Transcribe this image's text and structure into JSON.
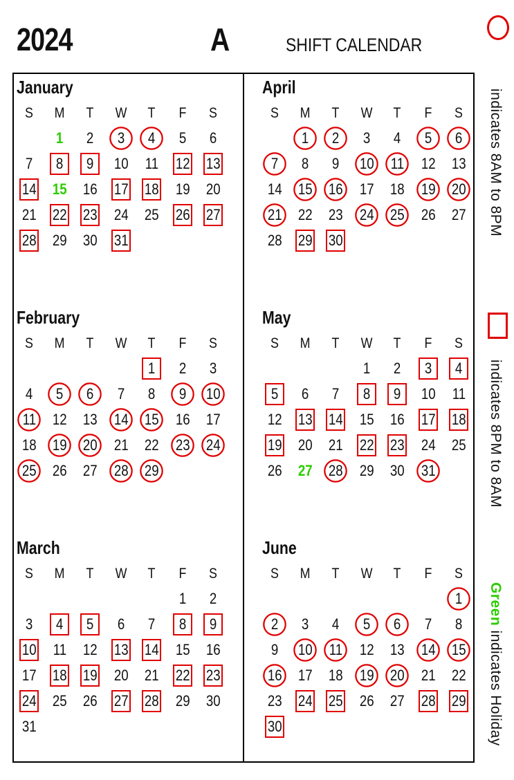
{
  "header": {
    "year": "2024",
    "team": "A",
    "title": "SHIFT CALENDAR"
  },
  "colors": {
    "shift_mark": "#e00000",
    "holiday": "#2ecc00"
  },
  "dow": [
    "S",
    "M",
    "T",
    "W",
    "T",
    "F",
    "S"
  ],
  "legend": {
    "circle_text": "indicates 8AM to 8PM",
    "square_text": "indicates 8PM to 8AM",
    "green_word": "Green",
    "green_text": " indicates Holiday"
  },
  "months": [
    {
      "name": "January",
      "start": 1,
      "days": 31,
      "circle": [
        3,
        4
      ],
      "square": [
        8,
        9,
        12,
        13,
        14,
        17,
        18,
        22,
        23,
        26,
        27,
        28,
        31
      ],
      "holiday": [
        1,
        15
      ]
    },
    {
      "name": "February",
      "start": 4,
      "days": 29,
      "circle": [
        5,
        6,
        9,
        10,
        11,
        14,
        15,
        19,
        20,
        23,
        24,
        25,
        28,
        29
      ],
      "square": [
        1
      ],
      "holiday": []
    },
    {
      "name": "March",
      "start": 5,
      "days": 31,
      "circle": [],
      "square": [
        4,
        5,
        8,
        9,
        10,
        13,
        14,
        18,
        19,
        22,
        23,
        24,
        27,
        28
      ],
      "holiday": []
    },
    {
      "name": "April",
      "start": 1,
      "days": 30,
      "circle": [
        1,
        2,
        5,
        6,
        7,
        10,
        11,
        15,
        16,
        19,
        20,
        21,
        24,
        25
      ],
      "square": [
        29,
        30
      ],
      "holiday": []
    },
    {
      "name": "May",
      "start": 3,
      "days": 31,
      "circle": [
        28,
        31
      ],
      "square": [
        3,
        4,
        5,
        8,
        9,
        13,
        14,
        17,
        18,
        19,
        22,
        23
      ],
      "holiday": [
        27
      ]
    },
    {
      "name": "June",
      "start": 6,
      "days": 30,
      "circle": [
        1,
        2,
        5,
        6,
        10,
        11,
        14,
        15,
        16,
        19,
        20
      ],
      "square": [
        24,
        25,
        28,
        29,
        30
      ],
      "holiday": []
    }
  ]
}
